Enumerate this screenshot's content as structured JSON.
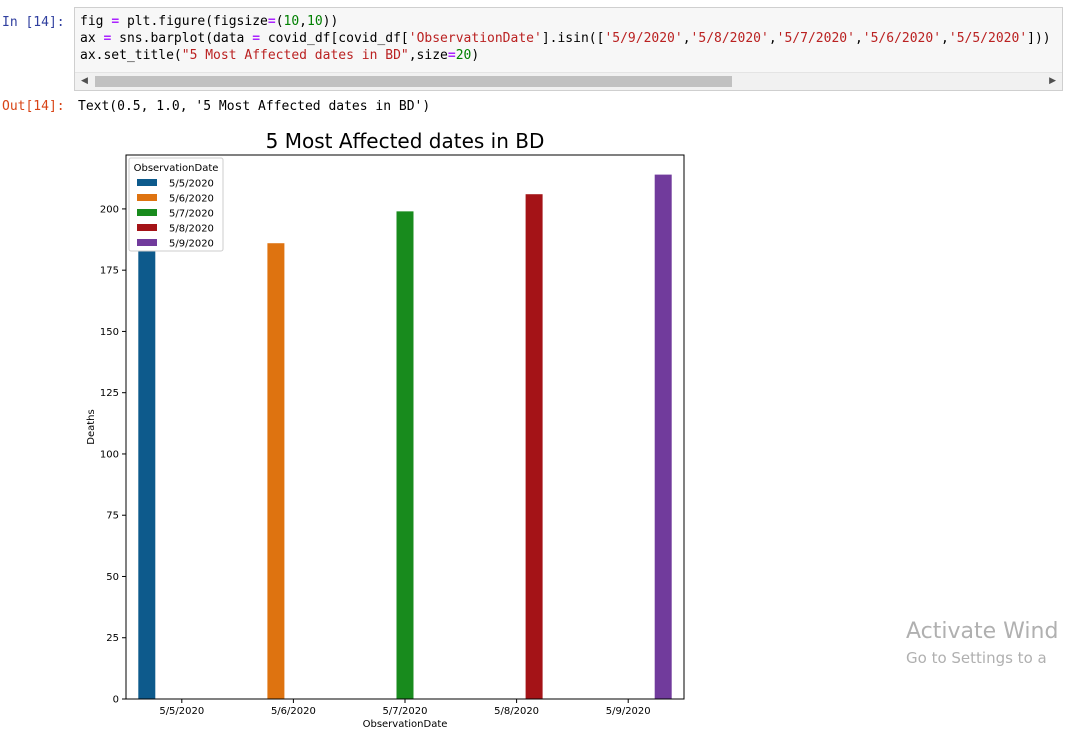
{
  "input_cell": {
    "prompt": "In [14]:",
    "code_lines": [
      [
        [
          "var",
          "fig "
        ],
        [
          "op",
          "="
        ],
        [
          "var",
          " plt.figure(figsize"
        ],
        [
          "op",
          "="
        ],
        [
          "var",
          "("
        ],
        [
          "num",
          "10"
        ],
        [
          "var",
          ","
        ],
        [
          "num",
          "10"
        ],
        [
          "var",
          "))"
        ]
      ],
      [
        [
          "var",
          "ax "
        ],
        [
          "op",
          "="
        ],
        [
          "var",
          " sns.barplot(data "
        ],
        [
          "op",
          "="
        ],
        [
          "var",
          " covid_df[covid_df["
        ],
        [
          "str",
          "'ObservationDate'"
        ],
        [
          "var",
          "].isin(["
        ],
        [
          "str",
          "'5/9/2020'"
        ],
        [
          "var",
          ","
        ],
        [
          "str",
          "'5/8/2020'"
        ],
        [
          "var",
          ","
        ],
        [
          "str",
          "'5/7/2020'"
        ],
        [
          "var",
          ","
        ],
        [
          "str",
          "'5/6/2020'"
        ],
        [
          "var",
          ","
        ],
        [
          "str",
          "'5/5/2020'"
        ],
        [
          "var",
          "]))"
        ]
      ],
      [
        [
          "var",
          "ax.set_title("
        ],
        [
          "str",
          "\"5 Most Affected dates in BD\""
        ],
        [
          "var",
          ",size"
        ],
        [
          "op",
          "="
        ],
        [
          "num",
          "20"
        ],
        [
          "var",
          ")"
        ]
      ]
    ]
  },
  "output_cell": {
    "prompt": "Out[14]:",
    "text": "Text(0.5, 1.0, '5 Most Affected dates in BD')"
  },
  "chart_data": {
    "type": "bar",
    "title": "5 Most Affected dates in BD",
    "xlabel": "ObservationDate",
    "ylabel": "Deaths",
    "categories": [
      "5/5/2020",
      "5/6/2020",
      "5/7/2020",
      "5/8/2020",
      "5/9/2020"
    ],
    "series": [
      {
        "name": "5/5/2020",
        "color": "#0d5a8c",
        "values": [
          183,
          null,
          null,
          null,
          null
        ]
      },
      {
        "name": "5/6/2020",
        "color": "#de7310",
        "values": [
          null,
          186,
          null,
          null,
          null
        ]
      },
      {
        "name": "5/7/2020",
        "color": "#188b1d",
        "values": [
          null,
          null,
          199,
          null,
          null
        ]
      },
      {
        "name": "5/8/2020",
        "color": "#a41317",
        "values": [
          null,
          null,
          null,
          206,
          null
        ]
      },
      {
        "name": "5/9/2020",
        "color": "#713b9c",
        "values": [
          null,
          null,
          null,
          null,
          214
        ]
      }
    ],
    "ylim": [
      0,
      222
    ],
    "yticks": [
      0,
      25,
      50,
      75,
      100,
      125,
      150,
      175,
      200
    ],
    "legend": {
      "title": "ObservationDate",
      "placement": "upper-left"
    },
    "grid": false
  },
  "watermark": {
    "title": "Activate Wind",
    "subtitle": "Go to Settings to a"
  }
}
